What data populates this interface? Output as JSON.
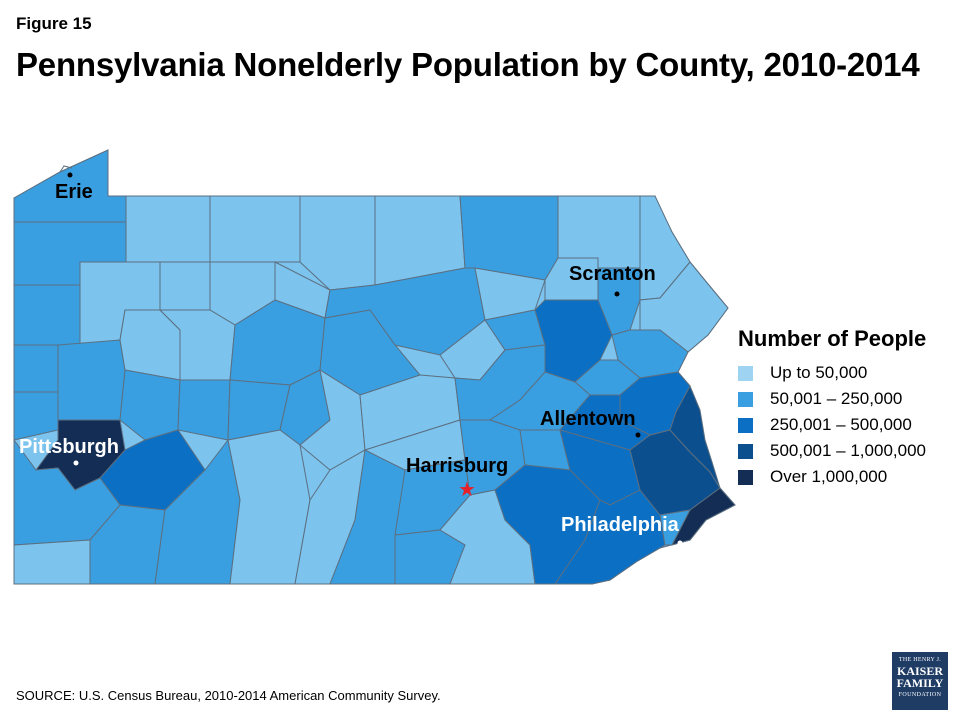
{
  "figure_label": "Figure 15",
  "title": "Pennsylvania Nonelderly Population by County, 2010-2014",
  "legend": {
    "title": "Number of People",
    "items": [
      {
        "label": "Up to 50,000",
        "color": "#9fd3f2"
      },
      {
        "label": "50,001 – 250,000",
        "color": "#3a9fe0"
      },
      {
        "label": "250,001 – 500,000",
        "color": "#0b6fc4"
      },
      {
        "label": "500,001 – 1,000,000",
        "color": "#0c4f8f"
      },
      {
        "label": "Over 1,000,000",
        "color": "#132d55"
      }
    ]
  },
  "cities": {
    "erie": "Erie",
    "scranton": "Scranton",
    "allentown": "Allentown",
    "pittsburgh": "Pittsburgh",
    "harrisburg": "Harrisburg",
    "philadelphia": "Philadelphia"
  },
  "colors": {
    "up_to_50k": "#9fd3f2",
    "c50k_250k": "#3a9fe0",
    "c250k_500k": "#0b6fc4",
    "c500k_1m": "#0c4f8f",
    "over_1m": "#132d55",
    "capital_star": "#e8202a",
    "border": "#5c6f80"
  },
  "source": "SOURCE: U.S. Census Bureau, 2010-2014 American Community Survey.",
  "logo": {
    "line1": "THE HENRY J.",
    "line2": "KAISER",
    "line3": "FAMILY",
    "line4": "FOUNDATION"
  }
}
